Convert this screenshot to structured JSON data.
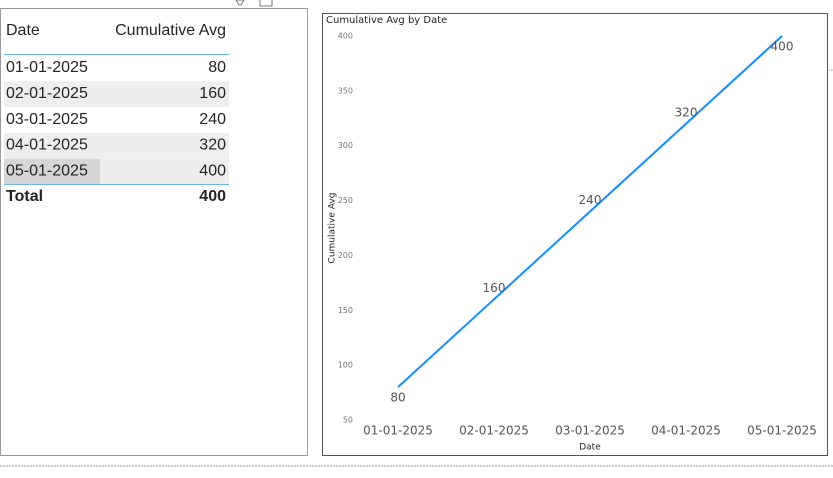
{
  "table": {
    "columns": [
      "Date",
      "Cumulative Avg"
    ],
    "rows": [
      [
        "01-01-2025",
        80
      ],
      [
        "02-01-2025",
        160
      ],
      [
        "03-01-2025",
        240
      ],
      [
        "04-01-2025",
        320
      ],
      [
        "05-01-2025",
        400
      ]
    ],
    "total": [
      "Total",
      400
    ]
  },
  "chart_data": {
    "type": "line",
    "title": "Cumulative Avg by Date",
    "x_label": "Date",
    "y_label": "Cumulative Avg",
    "categories": [
      "01-01-2025",
      "02-01-2025",
      "03-01-2025",
      "04-01-2025",
      "05-01-2025"
    ],
    "series": [
      {
        "name": "Cumulative Avg",
        "color": "#118dff",
        "values": [
          80,
          160,
          240,
          320,
          400
        ]
      }
    ],
    "ylim": [
      50,
      400
    ],
    "yticks": [
      50,
      100,
      150,
      200,
      250,
      300,
      350,
      400
    ],
    "grid": false,
    "data_labels": true
  }
}
